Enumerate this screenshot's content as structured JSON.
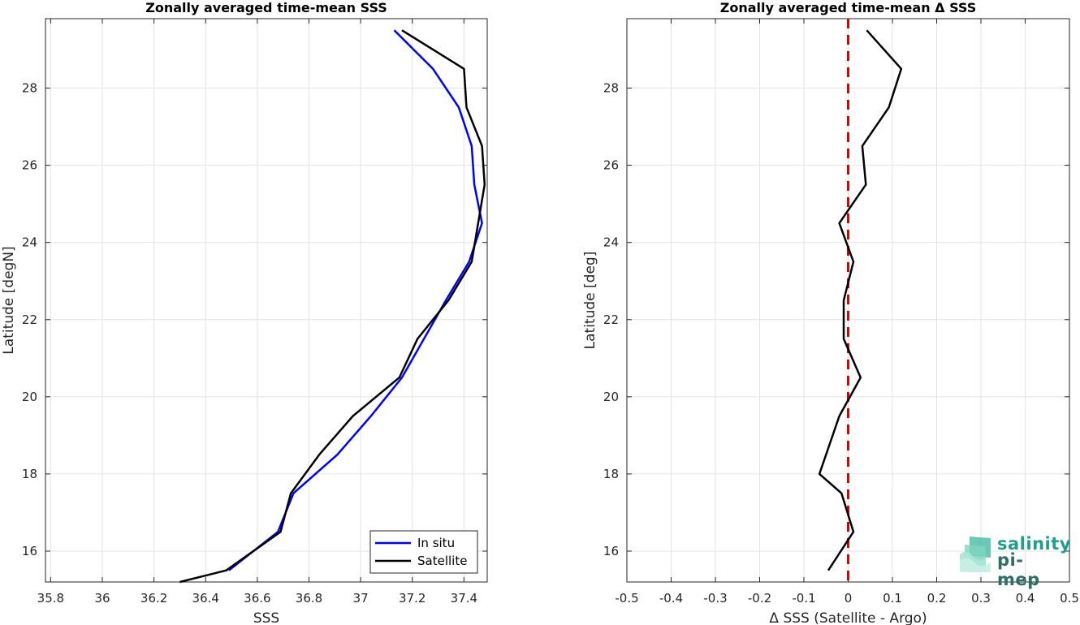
{
  "chart_data": [
    {
      "type": "line",
      "title": "Zonally averaged time-mean SSS",
      "xlabel": "SSS",
      "ylabel": "Latitude [degN]",
      "xlim": [
        35.78,
        37.49
      ],
      "ylim": [
        15.2,
        29.8
      ],
      "xticks": [
        35.8,
        36,
        36.2,
        36.4,
        36.6,
        36.8,
        37,
        37.2,
        37.4
      ],
      "xtick_labels": [
        "35.8",
        "36",
        "36.2",
        "36.4",
        "36.6",
        "36.8",
        "37",
        "37.2",
        "37.4"
      ],
      "yticks": [
        16,
        18,
        20,
        22,
        24,
        26,
        28
      ],
      "ytick_labels": [
        "16",
        "18",
        "20",
        "22",
        "24",
        "26",
        "28"
      ],
      "grid": true,
      "legend": "bottom-right",
      "series": [
        {
          "name": "In situ",
          "color": "#0000ff",
          "x": [
            36.49,
            36.68,
            36.74,
            36.91,
            37.04,
            37.16,
            37.33,
            37.42,
            37.47,
            37.44,
            37.43,
            37.38,
            37.28,
            37.13
          ],
          "y": [
            15.5,
            16.5,
            17.5,
            18.5,
            19.5,
            20.5,
            22.5,
            23.5,
            24.5,
            25.5,
            26.5,
            27.5,
            28.5,
            29.5
          ]
        },
        {
          "name": "Satellite",
          "color": "#000000",
          "x": [
            36.3,
            36.48,
            36.69,
            36.73,
            36.84,
            36.97,
            37.15,
            37.22,
            37.34,
            37.43,
            37.48,
            37.47,
            37.41,
            37.4,
            37.16
          ],
          "y": [
            15.2,
            15.5,
            16.5,
            17.5,
            18.5,
            19.5,
            20.5,
            21.5,
            22.5,
            23.5,
            25.5,
            26.5,
            27.5,
            28.5,
            29.5
          ]
        }
      ]
    },
    {
      "type": "line",
      "title": "Zonally averaged time-mean Δ SSS",
      "xlabel": "Δ SSS (Satellite - Argo)",
      "ylabel": "Latitude [deg]",
      "xlim": [
        -0.5,
        0.5
      ],
      "ylim": [
        15.2,
        29.8
      ],
      "xticks": [
        -0.5,
        -0.4,
        -0.3,
        -0.2,
        -0.1,
        0,
        0.1,
        0.2,
        0.3,
        0.4,
        0.5
      ],
      "xtick_labels": [
        "-0.5",
        "-0.4",
        "-0.3",
        "-0.2",
        "-0.1",
        "0",
        "0.1",
        "0.2",
        "0.3",
        "0.4",
        "0.5"
      ],
      "yticks": [
        16,
        18,
        20,
        22,
        24,
        26,
        28
      ],
      "ytick_labels": [
        "16",
        "18",
        "20",
        "22",
        "24",
        "26",
        "28"
      ],
      "grid": true,
      "reference_line": {
        "x": 0,
        "color": "#dd0000",
        "style": "dashed"
      },
      "series": [
        {
          "color": "#000000",
          "x": [
            -0.045,
            0.012,
            -0.015,
            -0.065,
            -0.02,
            0.028,
            -0.01,
            -0.01,
            -0.01,
            0.012,
            -0.02,
            0.04,
            0.032,
            0.092,
            0.12,
            0.042
          ],
          "y": [
            15.5,
            16.5,
            17.5,
            18,
            19.5,
            20.5,
            21.5,
            22,
            22.5,
            23.5,
            24.5,
            25.5,
            26.5,
            27.5,
            28.5,
            29.5
          ]
        }
      ]
    }
  ],
  "logo": {
    "line1": "salinity",
    "line2": "pi-mep"
  }
}
